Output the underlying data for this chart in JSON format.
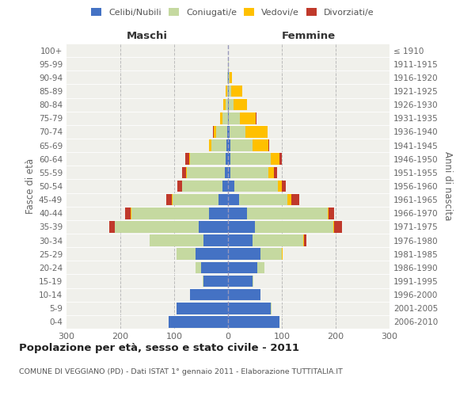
{
  "age_groups": [
    "0-4",
    "5-9",
    "10-14",
    "15-19",
    "20-24",
    "25-29",
    "30-34",
    "35-39",
    "40-44",
    "45-49",
    "50-54",
    "55-59",
    "60-64",
    "65-69",
    "70-74",
    "75-79",
    "80-84",
    "85-89",
    "90-94",
    "95-99",
    "100+"
  ],
  "birth_years": [
    "2006-2010",
    "2001-2005",
    "1996-2000",
    "1991-1995",
    "1986-1990",
    "1981-1985",
    "1976-1980",
    "1971-1975",
    "1966-1970",
    "1961-1965",
    "1956-1960",
    "1951-1955",
    "1946-1950",
    "1941-1945",
    "1936-1940",
    "1931-1935",
    "1926-1930",
    "1921-1925",
    "1916-1920",
    "1911-1915",
    "≤ 1910"
  ],
  "colors": {
    "celibi": "#4472c4",
    "coniugati": "#c5d9a0",
    "vedovi": "#ffc000",
    "divorziati": "#c0392b"
  },
  "males": {
    "celibi": [
      110,
      95,
      70,
      45,
      50,
      60,
      45,
      55,
      35,
      18,
      10,
      6,
      5,
      3,
      2,
      0,
      0,
      0,
      0,
      0,
      0
    ],
    "coniugati": [
      1,
      1,
      1,
      2,
      10,
      35,
      100,
      155,
      145,
      85,
      75,
      70,
      65,
      28,
      20,
      10,
      5,
      2,
      1,
      0,
      0
    ],
    "vedovi": [
      0,
      0,
      0,
      0,
      0,
      1,
      0,
      0,
      1,
      1,
      1,
      2,
      2,
      5,
      5,
      5,
      4,
      2,
      0,
      0,
      0
    ],
    "divorziati": [
      0,
      0,
      0,
      0,
      0,
      0,
      0,
      10,
      10,
      10,
      8,
      8,
      8,
      0,
      1,
      0,
      0,
      0,
      0,
      0,
      0
    ]
  },
  "females": {
    "nubili": [
      95,
      80,
      60,
      45,
      55,
      60,
      45,
      50,
      35,
      20,
      12,
      5,
      5,
      5,
      3,
      2,
      1,
      1,
      1,
      0,
      0
    ],
    "coniugate": [
      1,
      1,
      1,
      2,
      12,
      40,
      95,
      145,
      150,
      90,
      80,
      70,
      75,
      40,
      30,
      20,
      10,
      5,
      2,
      1,
      0
    ],
    "vedove": [
      0,
      0,
      0,
      0,
      0,
      1,
      1,
      2,
      2,
      8,
      8,
      10,
      15,
      30,
      40,
      30,
      25,
      20,
      5,
      1,
      0
    ],
    "divorziate": [
      0,
      0,
      0,
      0,
      0,
      0,
      5,
      15,
      10,
      15,
      8,
      6,
      5,
      1,
      0,
      1,
      0,
      0,
      0,
      0,
      0
    ]
  },
  "xlim": 300,
  "title": "Popolazione per età, sesso e stato civile - 2011",
  "subtitle": "COMUNE DI VEGGIANO (PD) - Dati ISTAT 1° gennaio 2011 - Elaborazione TUTTITALIA.IT",
  "ylabel_left": "Fasce di età",
  "ylabel_right": "Anni di nascita",
  "background_color": "#f0f0eb",
  "grid_color": "#cccccc"
}
